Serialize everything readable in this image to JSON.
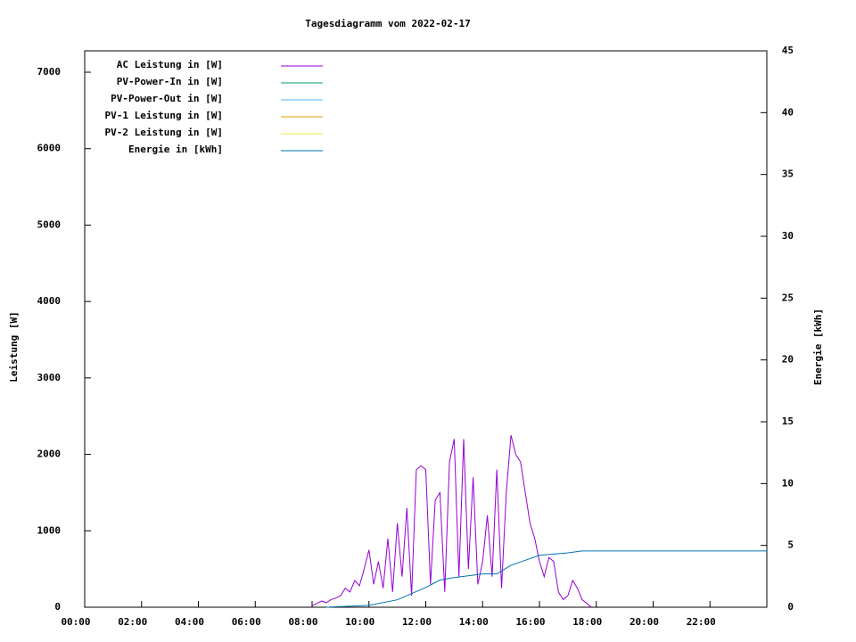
{
  "chart_data": {
    "type": "line",
    "title": "Tagesdiagramm vom 2022-02-17",
    "ylabel": "Leistung [W]",
    "y2label": "Energie [kWh]",
    "xlim": [
      0,
      1440
    ],
    "xticks": [
      {
        "value": 0,
        "label": "00:00"
      },
      {
        "value": 120,
        "label": "02:00"
      },
      {
        "value": 240,
        "label": "04:00"
      },
      {
        "value": 360,
        "label": "06:00"
      },
      {
        "value": 480,
        "label": "08:00"
      },
      {
        "value": 600,
        "label": "10:00"
      },
      {
        "value": 720,
        "label": "12:00"
      },
      {
        "value": 840,
        "label": "14:00"
      },
      {
        "value": 960,
        "label": "16:00"
      },
      {
        "value": 1080,
        "label": "18:00"
      },
      {
        "value": 1200,
        "label": "20:00"
      },
      {
        "value": 1320,
        "label": "22:00"
      }
    ],
    "ylim": [
      0,
      7280
    ],
    "yticks": [
      0,
      1000,
      2000,
      3000,
      4000,
      5000,
      6000,
      7000
    ],
    "y2lim": [
      0,
      45
    ],
    "y2ticks": [
      0,
      5,
      10,
      15,
      20,
      25,
      30,
      35,
      40,
      45
    ],
    "legend": "top-left",
    "series": [
      {
        "name": "AC Leistung in [W]",
        "color": "#9400d3",
        "x": [
          480,
          490,
          500,
          510,
          520,
          530,
          540,
          550,
          560,
          570,
          580,
          590,
          600,
          610,
          620,
          630,
          640,
          650,
          660,
          670,
          680,
          690,
          700,
          710,
          720,
          730,
          740,
          750,
          760,
          770,
          780,
          790,
          800,
          810,
          820,
          830,
          840,
          850,
          860,
          870,
          880,
          890,
          900,
          910,
          920,
          930,
          940,
          950,
          960,
          970,
          980,
          990,
          1000,
          1010,
          1020,
          1030,
          1040,
          1050,
          1060,
          1070
        ],
        "values": [
          20,
          50,
          80,
          60,
          100,
          120,
          150,
          250,
          200,
          350,
          280,
          500,
          750,
          300,
          600,
          250,
          900,
          200,
          1100,
          400,
          1300,
          150,
          1800,
          1850,
          1800,
          300,
          1400,
          1500,
          200,
          1900,
          2200,
          400,
          2200,
          500,
          1700,
          300,
          600,
          1200,
          400,
          1800,
          250,
          1500,
          2250,
          2000,
          1900,
          1500,
          1100,
          900,
          600,
          400,
          650,
          600,
          200,
          100,
          150,
          350,
          250,
          100,
          50,
          0
        ]
      },
      {
        "name": "PV-Power-In in [W]",
        "color": "#009e73",
        "x": [],
        "values": []
      },
      {
        "name": "PV-Power-Out in [W]",
        "color": "#56b4e9",
        "x": [],
        "values": []
      },
      {
        "name": "PV-1 Leistung in [W]",
        "color": "#e69f00",
        "x": [],
        "values": []
      },
      {
        "name": "PV-2 Leistung in [W]",
        "color": "#f0e442",
        "x": [],
        "values": []
      },
      {
        "name": "Energie in [kWh]",
        "color": "#0072b2",
        "axis": "y2",
        "x": [
          510,
          600,
          660,
          720,
          750,
          780,
          840,
          870,
          900,
          930,
          960,
          1020,
          1050,
          1440
        ],
        "values": [
          0,
          0.15,
          0.6,
          1.6,
          2.2,
          2.4,
          2.7,
          2.7,
          3.4,
          3.8,
          4.2,
          4.4,
          4.55,
          4.55
        ]
      }
    ]
  }
}
